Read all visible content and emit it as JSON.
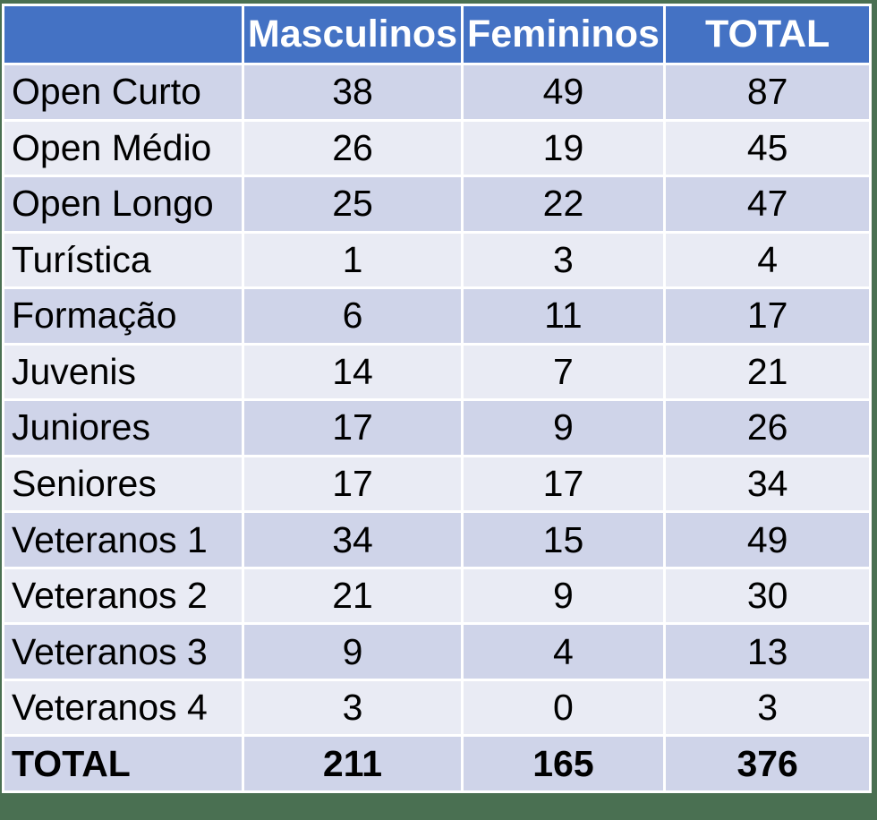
{
  "chart_data": {
    "type": "table",
    "title": "",
    "columns": [
      "",
      "Masculinos",
      "Femininos",
      "TOTAL"
    ],
    "rows": [
      {
        "label": "Open Curto",
        "values": [
          38,
          49,
          87
        ]
      },
      {
        "label": "Open Médio",
        "values": [
          26,
          19,
          45
        ]
      },
      {
        "label": "Open Longo",
        "values": [
          25,
          22,
          47
        ]
      },
      {
        "label": "Turística",
        "values": [
          1,
          3,
          4
        ]
      },
      {
        "label": "Formação",
        "values": [
          6,
          11,
          17
        ]
      },
      {
        "label": "Juvenis",
        "values": [
          14,
          7,
          21
        ]
      },
      {
        "label": "Juniores",
        "values": [
          17,
          9,
          26
        ]
      },
      {
        "label": "Seniores",
        "values": [
          17,
          17,
          34
        ]
      },
      {
        "label": "Veteranos 1",
        "values": [
          34,
          15,
          49
        ]
      },
      {
        "label": "Veteranos 2",
        "values": [
          21,
          9,
          30
        ]
      },
      {
        "label": "Veteranos 3",
        "values": [
          9,
          4,
          13
        ]
      },
      {
        "label": "Veteranos 4",
        "values": [
          3,
          0,
          3
        ]
      }
    ],
    "footer": {
      "label": "TOTAL",
      "values": [
        211,
        165,
        376
      ]
    },
    "layout_hints": {
      "banded_rows": true,
      "header_row": true,
      "first_column_left_aligned": true,
      "value_columns_centered": true
    }
  },
  "colors": {
    "header_bg": "#4472C4",
    "header_text": "#FFFFFF",
    "band_dark": "#CFD4E9",
    "band_light": "#E9EBF4",
    "border": "#FFFFFF",
    "body_text": "#000000",
    "background_green": "#4A7052"
  }
}
